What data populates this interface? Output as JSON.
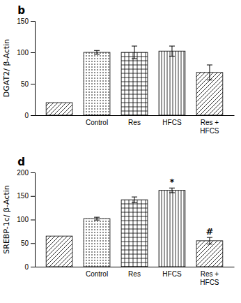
{
  "chart_data": [
    {
      "type": "bar",
      "title": "b",
      "ylabel": "DGAT2/ β-Actin",
      "categories": [
        null,
        "Control",
        "Res",
        "HFCS",
        "Res +\nHFCS"
      ],
      "values": [
        20,
        100,
        100,
        102,
        68
      ],
      "errors": [
        null,
        3,
        10,
        8,
        12
      ],
      "color": "#000000",
      "ylim": [
        0,
        150
      ],
      "yticks": [
        0,
        50,
        100,
        150
      ]
    },
    {
      "type": "bar",
      "title": "d",
      "ylabel": "SREBP-1c/ β-Actin",
      "categories": [
        null,
        "Control",
        "Res",
        "HFCS",
        "Res +\nHFCS"
      ],
      "values": [
        65,
        102,
        142,
        162,
        55
      ],
      "errors": [
        null,
        3,
        6,
        5,
        7
      ],
      "annotations": [
        null,
        null,
        null,
        "*",
        "#"
      ],
      "color": "#000000",
      "ylim": [
        0,
        200
      ],
      "yticks": [
        0,
        50,
        100,
        150,
        200
      ]
    }
  ]
}
